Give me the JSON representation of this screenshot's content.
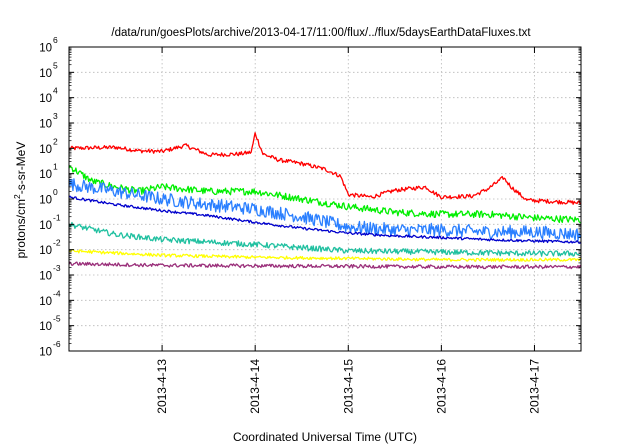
{
  "chart_data": {
    "type": "line",
    "title": "/data/run/goesPlots/archive/2013-04-17/11:00/flux/../flux/5daysEarthDataFluxes.txt",
    "xlabel": "Coordinated Universal Time (UTC)",
    "ylabel": "protons/cm²-s-sr-MeV",
    "y_scale": "log",
    "ylim": [
      1e-06,
      1000000.0
    ],
    "xlim": [
      "2013-04-12 00:00",
      "2013-04-17 12:00"
    ],
    "x_ticks": [
      "2013-4-13",
      "2013-4-14",
      "2013-4-15",
      "2013-4-16",
      "2013-4-17"
    ],
    "y_ticks": [
      {
        "base": "10",
        "exp": "-6"
      },
      {
        "base": "10",
        "exp": "-5"
      },
      {
        "base": "10",
        "exp": "-4"
      },
      {
        "base": "10",
        "exp": "-3"
      },
      {
        "base": "10",
        "exp": "-2"
      },
      {
        "base": "10",
        "exp": "-1"
      },
      {
        "base": "10",
        "exp": "0"
      },
      {
        "base": "10",
        "exp": "1"
      },
      {
        "base": "10",
        "exp": "2"
      },
      {
        "base": "10",
        "exp": "3"
      },
      {
        "base": "10",
        "exp": "4"
      },
      {
        "base": "10",
        "exp": "5"
      },
      {
        "base": "10",
        "exp": "6"
      }
    ],
    "grid": true,
    "series": [
      {
        "color": "#ff0000",
        "noise": 0.08,
        "points": [
          [
            "2013-04-12 00:00",
            100
          ],
          [
            "2013-04-12 12:00",
            110
          ],
          [
            "2013-04-12 18:00",
            80
          ],
          [
            "2013-04-13 00:00",
            75
          ],
          [
            "2013-04-13 06:00",
            130
          ],
          [
            "2013-04-13 12:00",
            55
          ],
          [
            "2013-04-13 20:00",
            60
          ],
          [
            "2013-04-13 23:00",
            70
          ],
          [
            "2013-04-14 00:00",
            400
          ],
          [
            "2013-04-14 02:00",
            60
          ],
          [
            "2013-04-14 06:00",
            35
          ],
          [
            "2013-04-14 12:00",
            25
          ],
          [
            "2013-04-14 18:00",
            15
          ],
          [
            "2013-04-14 22:00",
            8
          ],
          [
            "2013-04-15 00:00",
            1.5
          ],
          [
            "2013-04-15 06:00",
            1.2
          ],
          [
            "2013-04-15 12:00",
            2.2
          ],
          [
            "2013-04-15 20:00",
            3
          ],
          [
            "2013-04-15 22:00",
            1.8
          ],
          [
            "2013-04-16 00:00",
            1.2
          ],
          [
            "2013-04-16 08:00",
            1.3
          ],
          [
            "2013-04-16 12:00",
            2.5
          ],
          [
            "2013-04-16 16:00",
            7
          ],
          [
            "2013-04-16 18:00",
            3
          ],
          [
            "2013-04-16 22:00",
            0.9
          ],
          [
            "2013-04-17 12:00",
            0.7
          ]
        ]
      },
      {
        "color": "#00ee00",
        "noise": 0.14,
        "points": [
          [
            "2013-04-12 00:00",
            20
          ],
          [
            "2013-04-12 06:00",
            5
          ],
          [
            "2013-04-12 12:00",
            3
          ],
          [
            "2013-04-12 18:00",
            2
          ],
          [
            "2013-04-13 00:00",
            3
          ],
          [
            "2013-04-13 12:00",
            2
          ],
          [
            "2013-04-14 00:00",
            2
          ],
          [
            "2013-04-14 12:00",
            1
          ],
          [
            "2013-04-15 00:00",
            0.5
          ],
          [
            "2013-04-15 12:00",
            0.3
          ],
          [
            "2013-04-16 00:00",
            0.25
          ],
          [
            "2013-04-16 12:00",
            0.25
          ],
          [
            "2013-04-17 00:00",
            0.18
          ],
          [
            "2013-04-17 12:00",
            0.15
          ]
        ]
      },
      {
        "color": "#2a7fff",
        "noise": 0.26,
        "points": [
          [
            "2013-04-12 00:00",
            4
          ],
          [
            "2013-04-12 12:00",
            2
          ],
          [
            "2013-04-13 00:00",
            1
          ],
          [
            "2013-04-13 12:00",
            0.6
          ],
          [
            "2013-04-14 00:00",
            0.4
          ],
          [
            "2013-04-14 12:00",
            0.2
          ],
          [
            "2013-04-15 00:00",
            0.08
          ],
          [
            "2013-04-15 12:00",
            0.06
          ],
          [
            "2013-04-16 00:00",
            0.06
          ],
          [
            "2013-04-16 12:00",
            0.05
          ],
          [
            "2013-04-17 00:00",
            0.05
          ],
          [
            "2013-04-17 12:00",
            0.04
          ]
        ]
      },
      {
        "color": "#0000cc",
        "noise": 0.05,
        "points": [
          [
            "2013-04-12 00:00",
            1.2
          ],
          [
            "2013-04-12 12:00",
            0.6
          ],
          [
            "2013-04-13 00:00",
            0.35
          ],
          [
            "2013-04-13 12:00",
            0.22
          ],
          [
            "2013-04-14 00:00",
            0.12
          ],
          [
            "2013-04-14 12:00",
            0.07
          ],
          [
            "2013-04-15 00:00",
            0.045
          ],
          [
            "2013-04-15 12:00",
            0.035
          ],
          [
            "2013-04-16 00:00",
            0.03
          ],
          [
            "2013-04-16 12:00",
            0.025
          ],
          [
            "2013-04-17 00:00",
            0.022
          ],
          [
            "2013-04-17 12:00",
            0.02
          ]
        ]
      },
      {
        "color": "#20c0a0",
        "noise": 0.11,
        "points": [
          [
            "2013-04-12 00:00",
            0.1
          ],
          [
            "2013-04-12 12:00",
            0.04
          ],
          [
            "2013-04-13 00:00",
            0.025
          ],
          [
            "2013-04-13 12:00",
            0.02
          ],
          [
            "2013-04-14 00:00",
            0.016
          ],
          [
            "2013-04-14 12:00",
            0.012
          ],
          [
            "2013-04-15 00:00",
            0.009
          ],
          [
            "2013-04-16 00:00",
            0.008
          ],
          [
            "2013-04-17 00:00",
            0.007
          ],
          [
            "2013-04-17 12:00",
            0.007
          ]
        ]
      },
      {
        "color": "#ffff00",
        "noise": 0.06,
        "points": [
          [
            "2013-04-12 00:00",
            0.009
          ],
          [
            "2013-04-13 00:00",
            0.006
          ],
          [
            "2013-04-14 00:00",
            0.005
          ],
          [
            "2013-04-15 00:00",
            0.0045
          ],
          [
            "2013-04-16 00:00",
            0.004
          ],
          [
            "2013-04-17 12:00",
            0.004
          ]
        ]
      },
      {
        "color": "#9a2f7a",
        "noise": 0.07,
        "points": [
          [
            "2013-04-12 00:00",
            0.0028
          ],
          [
            "2013-04-13 00:00",
            0.0024
          ],
          [
            "2013-04-14 00:00",
            0.0023
          ],
          [
            "2013-04-15 00:00",
            0.0022
          ],
          [
            "2013-04-16 00:00",
            0.0021
          ],
          [
            "2013-04-17 12:00",
            0.0021
          ]
        ]
      }
    ]
  }
}
